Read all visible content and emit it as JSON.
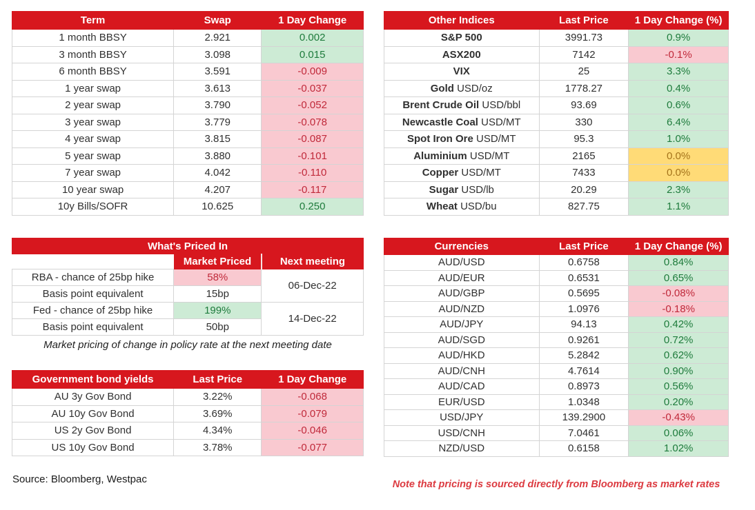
{
  "colors": {
    "red": "#D7171E",
    "green_bg": "#CDEBD5",
    "green_tx": "#1E7B3C",
    "pink_bg": "#F9C9D0",
    "pink_tx": "#C0293A",
    "yellow_bg": "#FFDB77",
    "yellow_tx": "#A4731B",
    "grid": "#D4D4D4",
    "ink": "#303030",
    "note": "#DC3A40"
  },
  "tables": {
    "swaps": {
      "headers": [
        "Term",
        "Swap",
        "1 Day Change"
      ],
      "rows": [
        {
          "label": "1 month BBSY",
          "value": "2.921",
          "change": "0.002",
          "change_style": "green"
        },
        {
          "label": "3 month BBSY",
          "value": "3.098",
          "change": "0.015",
          "change_style": "green"
        },
        {
          "label": "6 month BBSY",
          "value": "3.591",
          "change": "-0.009",
          "change_style": "pink"
        },
        {
          "label": "1 year swap",
          "value": "3.613",
          "change": "-0.037",
          "change_style": "pink"
        },
        {
          "label": "2 year swap",
          "value": "3.790",
          "change": "-0.052",
          "change_style": "pink"
        },
        {
          "label": "3 year swap",
          "value": "3.779",
          "change": "-0.078",
          "change_style": "pink"
        },
        {
          "label": "4 year swap",
          "value": "3.815",
          "change": "-0.087",
          "change_style": "pink"
        },
        {
          "label": "5 year swap",
          "value": "3.880",
          "change": "-0.101",
          "change_style": "pink"
        },
        {
          "label": "7 year swap",
          "value": "4.042",
          "change": "-0.110",
          "change_style": "pink"
        },
        {
          "label": "10 year swap",
          "value": "4.207",
          "change": "-0.117",
          "change_style": "pink"
        },
        {
          "label": "10y Bills/SOFR",
          "value": "10.625",
          "change": "0.250",
          "change_style": "green"
        }
      ]
    },
    "indices": {
      "headers": [
        "Other Indices",
        "Last Price",
        "1 Day Change (%)"
      ],
      "rows": [
        {
          "label_bold": "S&P 500",
          "label_unit": "",
          "value": "3991.73",
          "change": "0.9%",
          "change_style": "green"
        },
        {
          "label_bold": "ASX200",
          "label_unit": "",
          "value": "7142",
          "change": "-0.1%",
          "change_style": "pink"
        },
        {
          "label_bold": "VIX",
          "label_unit": "",
          "value": "25",
          "change": "3.3%",
          "change_style": "green"
        },
        {
          "label_bold": "Gold",
          "label_unit": "USD/oz",
          "value": "1778.27",
          "change": "0.4%",
          "change_style": "green"
        },
        {
          "label_bold": "Brent Crude Oil",
          "label_unit": "USD/bbl",
          "value": "93.69",
          "change": "0.6%",
          "change_style": "green"
        },
        {
          "label_bold": "Newcastle Coal",
          "label_unit": "USD/MT",
          "value": "330",
          "change": "6.4%",
          "change_style": "green"
        },
        {
          "label_bold": "Spot Iron Ore",
          "label_unit": "USD/MT",
          "value": "95.3",
          "change": "1.0%",
          "change_style": "green"
        },
        {
          "label_bold": "Aluminium",
          "label_unit": "USD/MT",
          "value": "2165",
          "change": "0.0%",
          "change_style": "yellow"
        },
        {
          "label_bold": "Copper",
          "label_unit": "USD/MT",
          "value": "7433",
          "change": "0.0%",
          "change_style": "yellow"
        },
        {
          "label_bold": "Sugar",
          "label_unit": "USD/lb",
          "value": "20.29",
          "change": "2.3%",
          "change_style": "green"
        },
        {
          "label_bold": "Wheat",
          "label_unit": "USD/bu",
          "value": "827.75",
          "change": "1.1%",
          "change_style": "green"
        }
      ]
    },
    "priced_in": {
      "title": "What's Priced In",
      "headers": [
        "",
        "Market Priced",
        "Next meeting"
      ],
      "rows": [
        {
          "label": "RBA - chance of 25bp hike",
          "value": "58%",
          "value_style": "pink",
          "meeting": "06-Dec-22"
        },
        {
          "label": "Basis point equivalent",
          "value": "15bp",
          "value_style": "plain"
        },
        {
          "label": "Fed - chance of 25bp hike",
          "value": "199%",
          "value_style": "green",
          "meeting": "14-Dec-22"
        },
        {
          "label": "Basis point equivalent",
          "value": "50bp",
          "value_style": "plain"
        }
      ],
      "caption": "Market pricing of change in policy rate at the next meeting date"
    },
    "bonds": {
      "headers": [
        "Government bond yields",
        "Last Price",
        "1 Day Change"
      ],
      "rows": [
        {
          "label": "AU 3y Gov Bond",
          "value": "3.22%",
          "change": "-0.068",
          "change_style": "pink"
        },
        {
          "label": "AU 10y Gov Bond",
          "value": "3.69%",
          "change": "-0.079",
          "change_style": "pink"
        },
        {
          "label": "US 2y Gov Bond",
          "value": "4.34%",
          "change": "-0.046",
          "change_style": "pink"
        },
        {
          "label": "US 10y Gov Bond",
          "value": "3.78%",
          "change": "-0.077",
          "change_style": "pink"
        }
      ]
    },
    "currencies": {
      "headers": [
        "Currencies",
        "Last Price",
        "1 Day Change (%)"
      ],
      "rows": [
        {
          "label": "AUD/USD",
          "value": "0.6758",
          "change": "0.84%",
          "change_style": "green"
        },
        {
          "label": "AUD/EUR",
          "value": "0.6531",
          "change": "0.65%",
          "change_style": "green"
        },
        {
          "label": "AUD/GBP",
          "value": "0.5695",
          "change": "-0.08%",
          "change_style": "pink"
        },
        {
          "label": "AUD/NZD",
          "value": "1.0976",
          "change": "-0.18%",
          "change_style": "pink"
        },
        {
          "label": "AUD/JPY",
          "value": "94.13",
          "change": "0.42%",
          "change_style": "green"
        },
        {
          "label": "AUD/SGD",
          "value": "0.9261",
          "change": "0.72%",
          "change_style": "green"
        },
        {
          "label": "AUD/HKD",
          "value": "5.2842",
          "change": "0.62%",
          "change_style": "green"
        },
        {
          "label": "AUD/CNH",
          "value": "4.7614",
          "change": "0.90%",
          "change_style": "green"
        },
        {
          "label": "AUD/CAD",
          "value": "0.8973",
          "change": "0.56%",
          "change_style": "green"
        },
        {
          "label": "EUR/USD",
          "value": "1.0348",
          "change": "0.20%",
          "change_style": "green"
        },
        {
          "label": "USD/JPY",
          "value": "139.2900",
          "change": "-0.43%",
          "change_style": "pink"
        },
        {
          "label": "USD/CNH",
          "value": "7.0461",
          "change": "0.06%",
          "change_style": "green"
        },
        {
          "label": "NZD/USD",
          "value": "0.6158",
          "change": "1.02%",
          "change_style": "green"
        }
      ]
    }
  },
  "footers": {
    "source": "Source: Bloomberg, Westpac",
    "note": "Note that pricing is sourced directly from Bloomberg as market rates"
  }
}
